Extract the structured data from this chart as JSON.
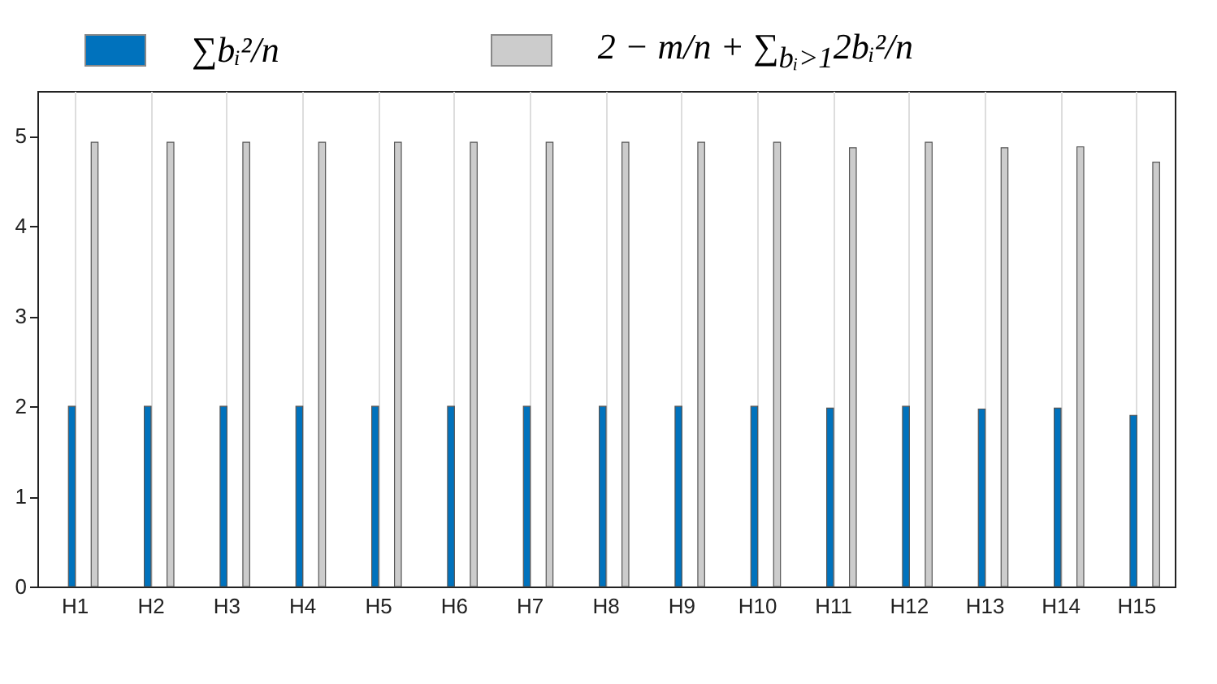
{
  "chart_data": {
    "type": "bar",
    "categories": [
      "H1",
      "H2",
      "H3",
      "H4",
      "H5",
      "H6",
      "H7",
      "H8",
      "H9",
      "H10",
      "H11",
      "H12",
      "H13",
      "H14",
      "H15"
    ],
    "series": [
      {
        "name": "∑bᵢ²/n",
        "color": "#0072bd",
        "values": [
          2.0,
          2.0,
          2.0,
          2.0,
          2.0,
          2.0,
          2.0,
          2.0,
          2.0,
          2.0,
          1.98,
          2.0,
          1.97,
          1.98,
          1.9
        ]
      },
      {
        "name": "2 − m/n + ∑$_{bᵢ>1}$2bᵢ²/n",
        "color": "#cccccc",
        "values": [
          4.93,
          4.93,
          4.93,
          4.93,
          4.93,
          4.93,
          4.93,
          4.93,
          4.93,
          4.93,
          4.87,
          4.93,
          4.87,
          4.88,
          4.71
        ]
      }
    ],
    "ylim": [
      0,
      5.5
    ],
    "yticks": [
      0,
      1,
      2,
      3,
      4,
      5
    ],
    "grid": "x",
    "legend": "top"
  }
}
